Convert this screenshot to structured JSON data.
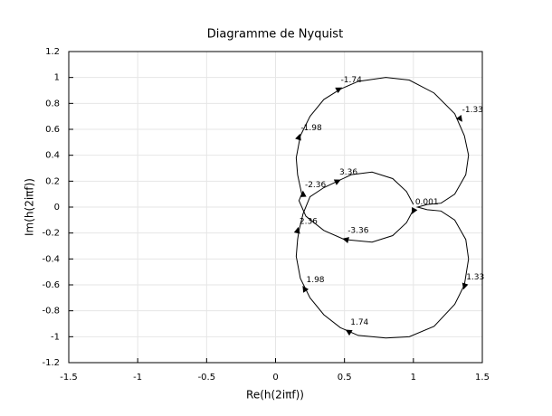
{
  "chart_data": {
    "type": "line",
    "title": "Diagramme de Nyquist",
    "x_label": "Re(h(2iπf))",
    "y_label": "Im(h(2iπf))",
    "xlim": [
      -1.5,
      1.5
    ],
    "ylim": [
      -1.2,
      1.2
    ],
    "xticks": [
      -1.5,
      -1,
      -0.5,
      0,
      0.5,
      1,
      1.5
    ],
    "yticks": [
      -1.2,
      -1,
      -0.8,
      -0.6,
      -0.4,
      -0.2,
      0,
      0.2,
      0.4,
      0.6,
      0.8,
      1,
      1.2
    ],
    "grid": true,
    "series": [
      {
        "color": "#000000",
        "x": [
          1.0,
          0.95,
          0.85,
          0.7,
          0.5,
          0.35,
          0.22,
          0.17,
          0.19,
          0.16,
          0.15,
          0.18,
          0.25,
          0.35,
          0.47,
          0.6,
          0.8,
          0.97,
          1.15,
          1.3,
          1.37,
          1.4,
          1.38,
          1.3,
          1.2,
          1.1,
          1.03,
          1.1,
          1.2,
          1.3,
          1.38,
          1.4,
          1.37,
          1.3,
          1.15,
          0.97,
          0.8,
          0.6,
          0.47,
          0.35,
          0.25,
          0.18,
          0.15,
          0.16,
          0.17,
          0.2,
          0.25,
          0.35,
          0.45,
          0.55,
          0.7,
          0.85,
          0.95,
          1.0
        ],
        "y": [
          -0.02,
          -0.12,
          -0.22,
          -0.27,
          -0.25,
          -0.18,
          -0.07,
          0.05,
          0.1,
          0.25,
          0.38,
          0.55,
          0.7,
          0.83,
          0.91,
          0.97,
          1.0,
          0.98,
          0.88,
          0.72,
          0.55,
          0.4,
          0.25,
          0.1,
          0.03,
          0.02,
          0.0,
          -0.02,
          -0.03,
          -0.1,
          -0.25,
          -0.4,
          -0.6,
          -0.75,
          -0.92,
          -1.0,
          -1.01,
          -0.99,
          -0.93,
          -0.83,
          -0.7,
          -0.55,
          -0.38,
          -0.25,
          -0.18,
          -0.05,
          0.08,
          0.15,
          0.2,
          0.25,
          0.27,
          0.22,
          0.12,
          0.02
        ]
      }
    ],
    "annotations": [
      {
        "label": "-1.74",
        "x": 0.46,
        "y": 0.91
      },
      {
        "label": "-1.98",
        "x": 0.17,
        "y": 0.54
      },
      {
        "label": "-2.36",
        "x": 0.2,
        "y": 0.1
      },
      {
        "label": "3.36",
        "x": 0.45,
        "y": 0.2
      },
      {
        "label": "-3.36",
        "x": 0.51,
        "y": -0.25
      },
      {
        "label": "0.001",
        "x": 1.0,
        "y": -0.03
      },
      {
        "label": "-1.33",
        "x": 1.34,
        "y": 0.68
      },
      {
        "label": "2.36",
        "x": 0.16,
        "y": -0.18
      },
      {
        "label": "1.98",
        "x": 0.21,
        "y": -0.63
      },
      {
        "label": "1.33",
        "x": 1.37,
        "y": -0.61
      },
      {
        "label": "1.74",
        "x": 0.53,
        "y": -0.96
      }
    ]
  }
}
